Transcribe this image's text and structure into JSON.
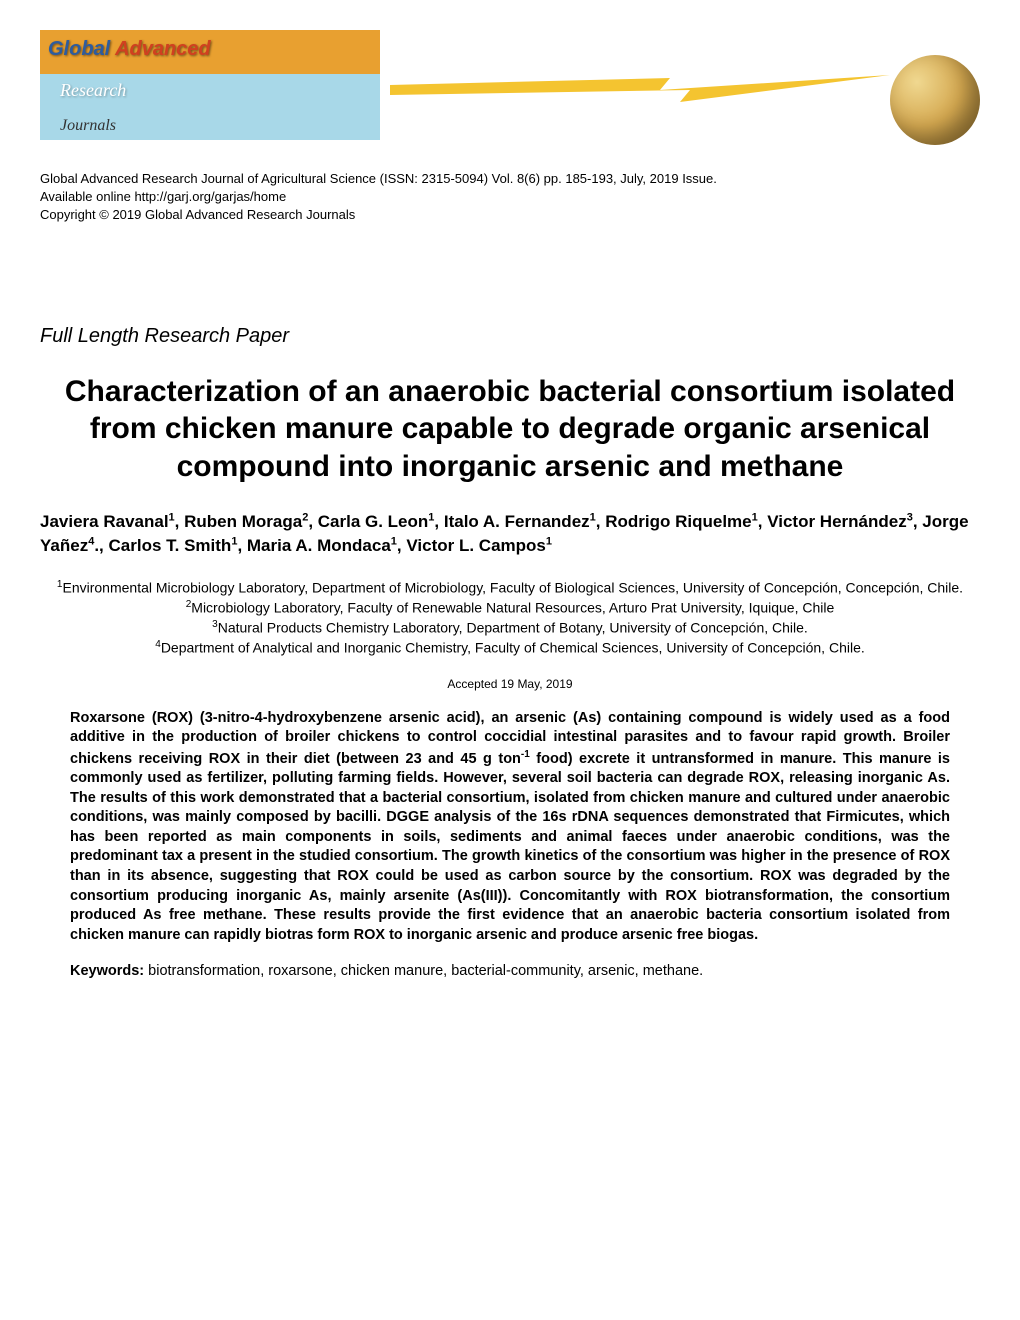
{
  "header": {
    "logo_text_1": "Global",
    "logo_text_2": "Advanced",
    "logo_text_3": "Research",
    "logo_text_4": "Journals"
  },
  "citation": {
    "line1": "Global Advanced Research Journal of Agricultural Science (ISSN: 2315-5094) Vol. 8(6) pp. 185-193, July, 2019 Issue.",
    "line2": "Available online http://garj.org/garjas/home",
    "line3": "Copyright © 2019 Global Advanced Research Journals"
  },
  "paper_type": "Full Length Research Paper",
  "title": "Characterization of an anaerobic bacterial consortium isolated from chicken manure capable to degrade organic arsenical compound into inorganic arsenic and methane",
  "authors_html": "Javiera Ravanal<sup>1</sup>, Ruben Moraga<sup>2</sup>, Carla G. Leon<sup>1</sup>, Italo A. Fernandez<sup>1</sup>, Rodrigo Riquelme<sup>1</sup>, Victor Hernández<sup>3</sup>, Jorge Yañez<sup>4</sup>., Carlos T. Smith<sup>1</sup>, Maria A. Mondaca<sup>1</sup>, Victor L. Campos<sup>1</sup>",
  "affiliations": [
    "<sup>1</sup>Environmental Microbiology Laboratory, Department of Microbiology, Faculty of Biological Sciences, University of Concepción, Concepción, Chile.",
    "<sup>2</sup>Microbiology Laboratory, Faculty of Renewable Natural Resources, Arturo Prat University, Iquique, Chile",
    "<sup>3</sup>Natural Products Chemistry Laboratory, Department of Botany, University of Concepción, Chile.",
    "<sup>4</sup>Department of Analytical and Inorganic Chemistry, Faculty of Chemical Sciences, University of Concepción, Chile."
  ],
  "accepted": "Accepted 19 May, 2019",
  "abstract": "Roxarsone (ROX) (3-nitro-4-hydroxybenzene arsenic acid), an arsenic (As) containing compound is widely used as a food additive in the production of broiler chickens to control coccidial intestinal parasites and to favour rapid growth. Broiler chickens receiving ROX in their diet (between 23 and 45 g ton<sup>-1</sup> food) excrete it untransformed in manure. This manure is commonly used as fertilizer, polluting farming fields. However, several soil bacteria can degrade ROX, releasing inorganic As. The results of this work demonstrated that a bacterial consortium, isolated from chicken manure and cultured under anaerobic conditions, was mainly composed by bacilli. DGGE analysis of the 16s rDNA sequences demonstrated that Firmicutes, which has been reported as main components in soils, sediments and animal faeces under anaerobic conditions, was the predominant tax a present in the studied consortium. The growth kinetics of the consortium was higher in the presence of ROX than in its absence, suggesting that ROX could be used as carbon source by the consortium. ROX was degraded by the consortium producing inorganic As, mainly arsenite (As(III)). Concomitantly with ROX biotransformation, the consortium produced As free methane. These results provide the first evidence that an anaerobic bacteria consortium isolated from chicken manure can rapidly biotras form ROX to inorganic arsenic and produce arsenic free biogas.",
  "keywords_label": "Keywords:",
  "keywords": " biotransformation, roxarsone, chicken manure, bacterial-community, arsenic, methane.",
  "colors": {
    "background": "#ffffff",
    "text": "#000000",
    "lightning": "#f4c430",
    "globe_light": "#f0d890",
    "globe_dark": "#9c7830"
  }
}
